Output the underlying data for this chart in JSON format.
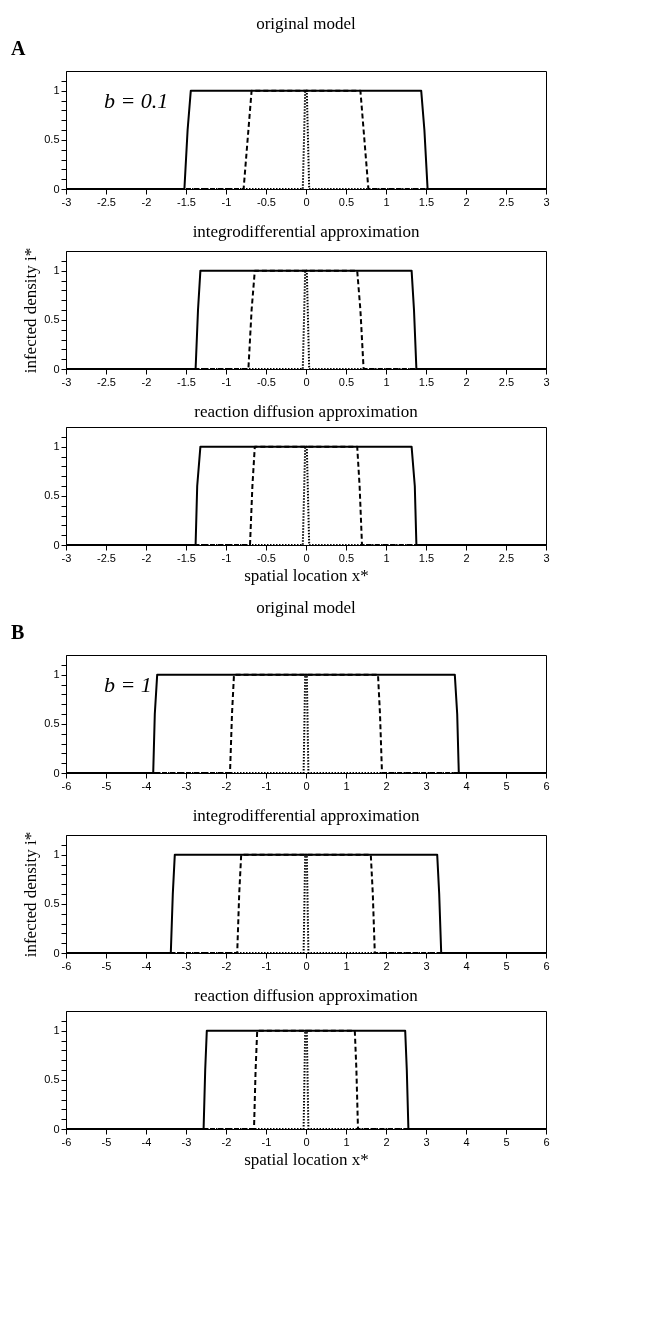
{
  "chart_data": [
    {
      "type": "line",
      "title": "original model",
      "annotations": [
        "A",
        "b = 0.1"
      ],
      "xlim": [
        -3,
        3
      ],
      "xticks": [
        -3,
        -2.5,
        -2,
        -1.5,
        -1,
        -0.5,
        0,
        0.5,
        1,
        1.5,
        2,
        2.5,
        3
      ],
      "ylim": [
        0,
        1.2
      ],
      "yticks": [
        0,
        {
          "value": 0.1,
          "label": null
        },
        {
          "value": 0.2,
          "label": null
        },
        {
          "value": 0.3,
          "label": null
        },
        {
          "value": 0.4,
          "label": null
        },
        0.5,
        {
          "value": 0.6,
          "label": null
        },
        {
          "value": 0.7,
          "label": null
        },
        {
          "value": 0.8,
          "label": null
        },
        {
          "value": 0.9,
          "label": null
        },
        1,
        {
          "value": 1.1,
          "label": null
        }
      ],
      "grid": false,
      "series": [
        {
          "color": "#000000",
          "line_style": "solid",
          "x": [
            -3,
            -1.52,
            -1.48,
            -1.44,
            1.44,
            1.48,
            1.52,
            3
          ],
          "values": [
            0,
            0,
            0.6,
            1,
            1,
            0.6,
            0,
            0
          ]
        },
        {
          "color": "#000000",
          "line_style": "dashed",
          "x": [
            -3,
            -0.78,
            -0.72,
            -0.68,
            0.68,
            0.72,
            0.78,
            3
          ],
          "values": [
            0,
            0,
            0.6,
            1,
            1,
            0.6,
            0,
            0
          ]
        },
        {
          "color": "#000000",
          "line_style": "dotted",
          "x": [
            -3,
            -0.04,
            -0.01,
            0.01,
            0.04,
            3
          ],
          "values": [
            0,
            0,
            1,
            1,
            0,
            0
          ]
        }
      ]
    },
    {
      "type": "line",
      "title": "integrodifferential approximation",
      "ylabel": "infected density i*",
      "xlim": [
        -3,
        3
      ],
      "xticks": [
        -3,
        -2.5,
        -2,
        -1.5,
        -1,
        -0.5,
        0,
        0.5,
        1,
        1.5,
        2,
        2.5,
        3
      ],
      "ylim": [
        0,
        1.2
      ],
      "yticks": [
        0,
        {
          "value": 0.1,
          "label": null
        },
        {
          "value": 0.2,
          "label": null
        },
        {
          "value": 0.3,
          "label": null
        },
        {
          "value": 0.4,
          "label": null
        },
        0.5,
        {
          "value": 0.6,
          "label": null
        },
        {
          "value": 0.7,
          "label": null
        },
        {
          "value": 0.8,
          "label": null
        },
        {
          "value": 0.9,
          "label": null
        },
        1,
        {
          "value": 1.1,
          "label": null
        }
      ],
      "grid": false,
      "series": [
        {
          "color": "#000000",
          "line_style": "solid",
          "x": [
            -3,
            -1.38,
            -1.35,
            -1.32,
            1.32,
            1.35,
            1.38,
            3
          ],
          "values": [
            0,
            0,
            0.6,
            1,
            1,
            0.6,
            0,
            0
          ]
        },
        {
          "color": "#000000",
          "line_style": "dashed",
          "x": [
            -3,
            -0.72,
            -0.68,
            -0.64,
            0.64,
            0.68,
            0.72,
            3
          ],
          "values": [
            0,
            0,
            0.6,
            1,
            1,
            0.6,
            0,
            0
          ]
        },
        {
          "color": "#000000",
          "line_style": "dotted",
          "x": [
            -3,
            -0.04,
            -0.01,
            0.01,
            0.04,
            3
          ],
          "values": [
            0,
            0,
            1,
            1,
            0,
            0
          ]
        }
      ]
    },
    {
      "type": "line",
      "title": "reaction diffusion approximation",
      "xlabel": "spatial location x*",
      "xlim": [
        -3,
        3
      ],
      "xticks": [
        -3,
        -2.5,
        -2,
        -1.5,
        -1,
        -0.5,
        0,
        0.5,
        1,
        1.5,
        2,
        2.5,
        3
      ],
      "ylim": [
        0,
        1.2
      ],
      "yticks": [
        0,
        {
          "value": 0.1,
          "label": null
        },
        {
          "value": 0.2,
          "label": null
        },
        {
          "value": 0.3,
          "label": null
        },
        {
          "value": 0.4,
          "label": null
        },
        0.5,
        {
          "value": 0.6,
          "label": null
        },
        {
          "value": 0.7,
          "label": null
        },
        {
          "value": 0.8,
          "label": null
        },
        {
          "value": 0.9,
          "label": null
        },
        1,
        {
          "value": 1.1,
          "label": null
        }
      ],
      "grid": false,
      "series": [
        {
          "color": "#000000",
          "line_style": "solid",
          "x": [
            -3,
            -1.38,
            -1.36,
            -1.32,
            1.32,
            1.36,
            1.38,
            3
          ],
          "values": [
            0,
            0,
            0.6,
            1,
            1,
            0.6,
            0,
            0
          ]
        },
        {
          "color": "#000000",
          "line_style": "dashed",
          "x": [
            -3,
            -0.7,
            -0.67,
            -0.64,
            0.64,
            0.67,
            0.7,
            3
          ],
          "values": [
            0,
            0,
            0.6,
            1,
            1,
            0.6,
            0,
            0
          ]
        },
        {
          "color": "#000000",
          "line_style": "dotted",
          "x": [
            -3,
            -0.04,
            -0.01,
            0.01,
            0.04,
            3
          ],
          "values": [
            0,
            0,
            1,
            1,
            0,
            0
          ]
        }
      ]
    },
    {
      "type": "line",
      "title": "original model",
      "annotations": [
        "B",
        "b = 1"
      ],
      "xlim": [
        -6,
        6
      ],
      "xticks": [
        -6,
        -5,
        -4,
        -3,
        -2,
        -1,
        0,
        1,
        2,
        3,
        4,
        5,
        6
      ],
      "ylim": [
        0,
        1.2
      ],
      "yticks": [
        0,
        {
          "value": 0.1,
          "label": null
        },
        {
          "value": 0.2,
          "label": null
        },
        {
          "value": 0.3,
          "label": null
        },
        {
          "value": 0.4,
          "label": null
        },
        0.5,
        {
          "value": 0.6,
          "label": null
        },
        {
          "value": 0.7,
          "label": null
        },
        {
          "value": 0.8,
          "label": null
        },
        {
          "value": 0.9,
          "label": null
        },
        1,
        {
          "value": 1.1,
          "label": null
        }
      ],
      "grid": false,
      "series": [
        {
          "color": "#000000",
          "line_style": "solid",
          "x": [
            -6,
            -3.82,
            -3.78,
            -3.72,
            3.72,
            3.78,
            3.82,
            6
          ],
          "values": [
            0,
            0,
            0.6,
            1,
            1,
            0.6,
            0,
            0
          ]
        },
        {
          "color": "#000000",
          "line_style": "dashed",
          "x": [
            -6,
            -1.9,
            -1.85,
            -1.8,
            1.8,
            1.85,
            1.9,
            6
          ],
          "values": [
            0,
            0,
            0.6,
            1,
            1,
            0.6,
            0,
            0
          ]
        },
        {
          "color": "#000000",
          "line_style": "dotted",
          "x": [
            -6,
            -0.06,
            -0.02,
            0.02,
            0.06,
            6
          ],
          "values": [
            0,
            0,
            1,
            1,
            0,
            0
          ]
        }
      ]
    },
    {
      "type": "line",
      "title": "integrodifferential approximation",
      "ylabel": "infected density i*",
      "xlim": [
        -6,
        6
      ],
      "xticks": [
        -6,
        -5,
        -4,
        -3,
        -2,
        -1,
        0,
        1,
        2,
        3,
        4,
        5,
        6
      ],
      "ylim": [
        0,
        1.2
      ],
      "yticks": [
        0,
        {
          "value": 0.1,
          "label": null
        },
        {
          "value": 0.2,
          "label": null
        },
        {
          "value": 0.3,
          "label": null
        },
        {
          "value": 0.4,
          "label": null
        },
        0.5,
        {
          "value": 0.6,
          "label": null
        },
        {
          "value": 0.7,
          "label": null
        },
        {
          "value": 0.8,
          "label": null
        },
        {
          "value": 0.9,
          "label": null
        },
        1,
        {
          "value": 1.1,
          "label": null
        }
      ],
      "grid": false,
      "series": [
        {
          "color": "#000000",
          "line_style": "solid",
          "x": [
            -6,
            -3.38,
            -3.33,
            -3.28,
            3.28,
            3.33,
            3.38,
            6
          ],
          "values": [
            0,
            0,
            0.6,
            1,
            1,
            0.6,
            0,
            0
          ]
        },
        {
          "color": "#000000",
          "line_style": "dashed",
          "x": [
            -6,
            -1.72,
            -1.67,
            -1.62,
            1.62,
            1.67,
            1.72,
            6
          ],
          "values": [
            0,
            0,
            0.6,
            1,
            1,
            0.6,
            0,
            0
          ]
        },
        {
          "color": "#000000",
          "line_style": "dotted",
          "x": [
            -6,
            -0.06,
            -0.02,
            0.02,
            0.06,
            6
          ],
          "values": [
            0,
            0,
            1,
            1,
            0,
            0
          ]
        }
      ]
    },
    {
      "type": "line",
      "title": "reaction diffusion approximation",
      "xlabel": "spatial location x*",
      "xlim": [
        -6,
        6
      ],
      "xticks": [
        -6,
        -5,
        -4,
        -3,
        -2,
        -1,
        0,
        1,
        2,
        3,
        4,
        5,
        6
      ],
      "ylim": [
        0,
        1.2
      ],
      "yticks": [
        0,
        {
          "value": 0.1,
          "label": null
        },
        {
          "value": 0.2,
          "label": null
        },
        {
          "value": 0.3,
          "label": null
        },
        {
          "value": 0.4,
          "label": null
        },
        0.5,
        {
          "value": 0.6,
          "label": null
        },
        {
          "value": 0.7,
          "label": null
        },
        {
          "value": 0.8,
          "label": null
        },
        {
          "value": 0.9,
          "label": null
        },
        1,
        {
          "value": 1.1,
          "label": null
        }
      ],
      "grid": false,
      "series": [
        {
          "color": "#000000",
          "line_style": "solid",
          "x": [
            -6,
            -2.56,
            -2.52,
            -2.48,
            2.48,
            2.52,
            2.56,
            6
          ],
          "values": [
            0,
            0,
            0.6,
            1,
            1,
            0.6,
            0,
            0
          ]
        },
        {
          "color": "#000000",
          "line_style": "dashed",
          "x": [
            -6,
            -1.3,
            -1.26,
            -1.22,
            1.22,
            1.26,
            1.3,
            6
          ],
          "values": [
            0,
            0,
            0.6,
            1,
            1,
            0.6,
            0,
            0
          ]
        },
        {
          "color": "#000000",
          "line_style": "dotted",
          "x": [
            -6,
            -0.06,
            -0.02,
            0.02,
            0.06,
            6
          ],
          "values": [
            0,
            0,
            1,
            1,
            0,
            0
          ]
        }
      ]
    }
  ]
}
